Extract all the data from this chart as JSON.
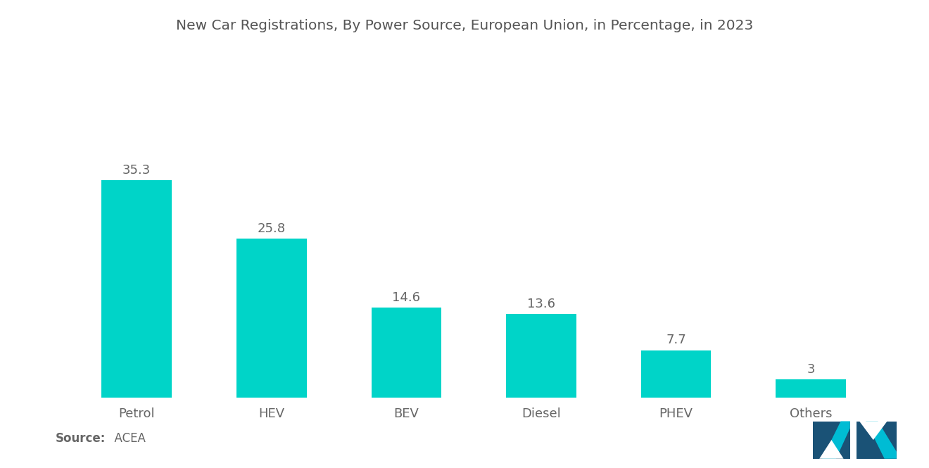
{
  "title": "New Car Registrations, By Power Source, European Union, in Percentage, in 2023",
  "categories": [
    "Petrol",
    "HEV",
    "BEV",
    "Diesel",
    "PHEV",
    "Others"
  ],
  "values": [
    35.3,
    25.8,
    14.6,
    13.6,
    7.7,
    3
  ],
  "bar_color": "#00D4C8",
  "label_color": "#666666",
  "title_color": "#555555",
  "background_color": "#FFFFFF",
  "bar_width": 0.52,
  "ylim": [
    0,
    44
  ],
  "source_label": "Source:",
  "source_value": "  ACEA",
  "title_fontsize": 14.5,
  "label_fontsize": 13,
  "value_fontsize": 13,
  "source_fontsize": 12,
  "logo_color_left": "#1A5276",
  "logo_color_right": "#2E86AB",
  "logo_color_teal": "#00BCD4"
}
